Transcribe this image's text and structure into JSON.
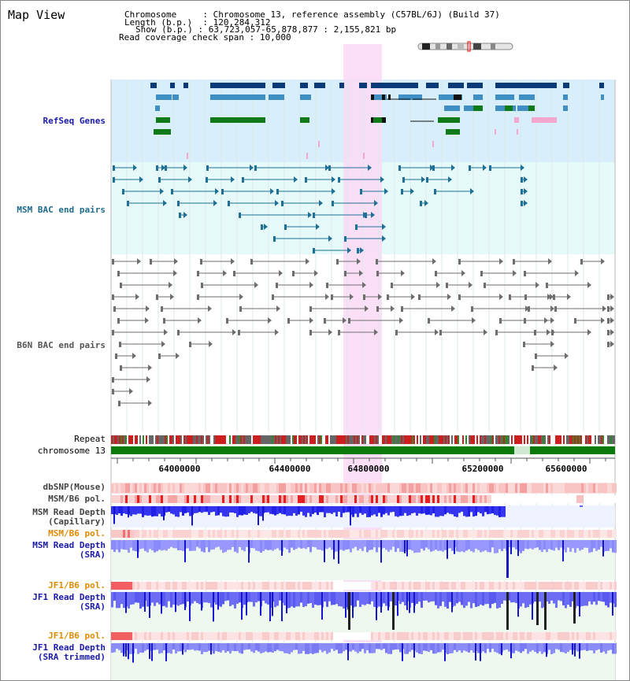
{
  "page": {
    "title": "Map View",
    "chromosome_label": "Chromosome",
    "chromosome_value": "Chromosome 13, reference assembly (C57BL/6J) (Build 37)",
    "length_label": "Length (b.p.)",
    "length_value": "120,284,312",
    "show_label": "Show (b.p.)",
    "show_value": "63,723,057-65,878,877 : 2,155,821 bp",
    "coverage_label": "Read coverage check span",
    "coverage_value": "10,000"
  },
  "tracks": {
    "refseq": "RefSeq Genes",
    "msm_bac": "MSM BAC end pairs",
    "b6n_bac": "B6N BAC end pairs",
    "repeat": "Repeat",
    "chromosome": "chromosome 13",
    "dbsnp": "dbSNP(Mouse)",
    "msm_pol1": "MSM/B6 pol.",
    "msm_cap_1": "MSM Read Depth",
    "msm_cap_2": "(Capillary)",
    "msm_pol2": "MSM/B6 pol.",
    "msm_sra_1": "MSM Read Depth",
    "msm_sra_2": "(SRA)",
    "jf1_pol1": "JF1/B6 pol.",
    "jf1_sra_1": "JF1 Read Depth",
    "jf1_sra_2": "(SRA)",
    "jf1_pol2": "JF1/B6 pol.",
    "jf1_trim_1": "JF1 Read Depth",
    "jf1_trim_2": "(SRA trimmed)"
  },
  "axis_ticks": [
    "64000000",
    "64400000",
    "64800000",
    "65200000",
    "65600000"
  ],
  "colors": {
    "highlight": "#fadcf5",
    "refseq_bg": "#d8eefa",
    "msm_bg": "#e6fafa",
    "b6n_bg": "#ffffff",
    "gene_dark": "#0b3a78",
    "gene_mid": "#3f8fc4",
    "gene_green": "#0e7a1a",
    "gene_pink": "#f4a6cf",
    "bac_msm": "#1f7096",
    "bac_b6n": "#6e6e6e",
    "chrom_green": "#0a7a0a",
    "depth_blue": "#2222ee",
    "depth_light": "#8888ff"
  }
}
